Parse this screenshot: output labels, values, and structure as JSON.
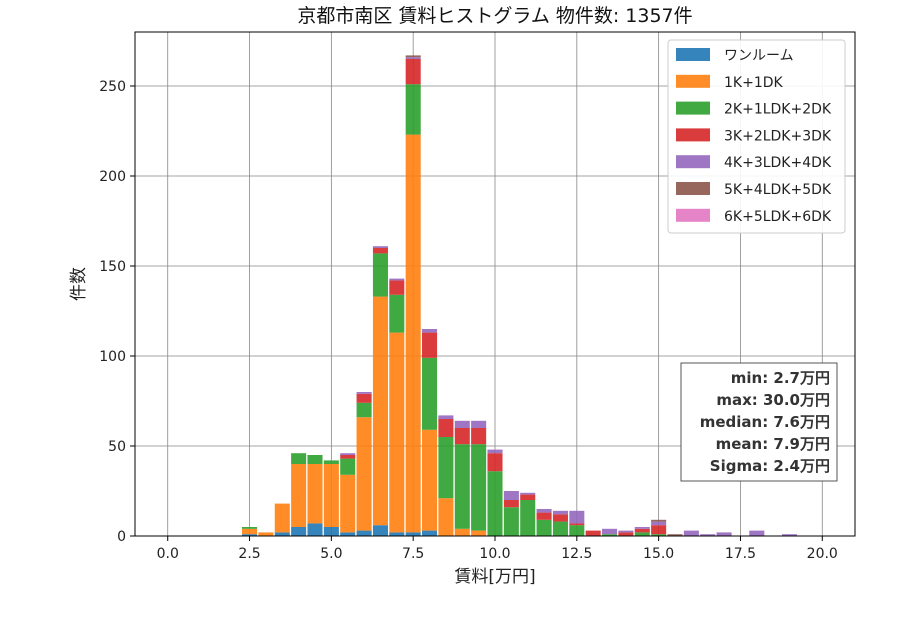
{
  "chart_data": {
    "type": "bar",
    "stacked": true,
    "title": "京都市南区 賃料ヒストグラム 物件数: 1357件",
    "xlabel": "賃料[万円]",
    "ylabel": "件数",
    "xlim": [
      -1.0,
      21.0
    ],
    "ylim": [
      0,
      280
    ],
    "xticks": [
      0.0,
      2.5,
      5.0,
      7.5,
      10.0,
      12.5,
      15.0,
      17.5,
      20.0
    ],
    "xtick_labels": [
      "0.0",
      "2.5",
      "5.0",
      "7.5",
      "10.0",
      "12.5",
      "15.0",
      "17.5",
      "20.0"
    ],
    "yticks": [
      0,
      50,
      100,
      150,
      200,
      250
    ],
    "ytick_labels": [
      "0",
      "50",
      "100",
      "150",
      "200",
      "250"
    ],
    "grid": true,
    "legend_position": "top-right",
    "bin_width": 0.5,
    "x": [
      2.5,
      3.0,
      3.5,
      4.0,
      4.5,
      5.0,
      5.5,
      6.0,
      6.5,
      7.0,
      7.5,
      8.0,
      8.5,
      9.0,
      9.5,
      10.0,
      10.5,
      11.0,
      11.5,
      12.0,
      12.5,
      13.0,
      13.5,
      14.0,
      14.5,
      15.0,
      15.5,
      16.0,
      16.5,
      17.0,
      17.5,
      18.0,
      18.5,
      19.0
    ],
    "series": [
      {
        "name": "ワンルーム",
        "color": "#1f77b4",
        "values": [
          1,
          0,
          2,
          5,
          7,
          5,
          2,
          3,
          6,
          2,
          2,
          3,
          0,
          0,
          0,
          0,
          0,
          0,
          0,
          0,
          0,
          0,
          0,
          0,
          0,
          0,
          0,
          0,
          0,
          0,
          0,
          0,
          0,
          0
        ]
      },
      {
        "name": "1K+1DK",
        "color": "#ff7f0e",
        "values": [
          3,
          2,
          16,
          35,
          33,
          35,
          32,
          63,
          127,
          111,
          221,
          56,
          21,
          4,
          3,
          0,
          0,
          0,
          0,
          0,
          0,
          0,
          0,
          0,
          0,
          0,
          0,
          0,
          0,
          0,
          0,
          0,
          0,
          0
        ]
      },
      {
        "name": "2K+1LDK+2DK",
        "color": "#2ca02c",
        "values": [
          1,
          0,
          0,
          6,
          5,
          2,
          9,
          8,
          24,
          21,
          28,
          40,
          34,
          47,
          48,
          36,
          16,
          20,
          9,
          8,
          6,
          0,
          1,
          0,
          2,
          1,
          0,
          0,
          0,
          0,
          0,
          0,
          0,
          0
        ]
      },
      {
        "name": "3K+2LDK+3DK",
        "color": "#d62728",
        "values": [
          0,
          0,
          0,
          0,
          0,
          0,
          2,
          5,
          3,
          8,
          14,
          14,
          10,
          9,
          9,
          10,
          4,
          3,
          4,
          4,
          1,
          3,
          0,
          2,
          2,
          5,
          0,
          0,
          0,
          0,
          0,
          0,
          0,
          0
        ]
      },
      {
        "name": "4K+3LDK+4DK",
        "color": "#9467bd",
        "values": [
          0,
          0,
          0,
          0,
          0,
          0,
          1,
          1,
          1,
          1,
          1,
          2,
          2,
          4,
          4,
          2,
          5,
          1,
          2,
          2,
          7,
          0,
          3,
          1,
          1,
          2,
          0,
          3,
          1,
          2,
          0,
          3,
          0,
          1
        ]
      },
      {
        "name": "5K+4LDK+5DK",
        "color": "#8c564b",
        "values": [
          0,
          0,
          0,
          0,
          0,
          0,
          0,
          0,
          0,
          0,
          1,
          0,
          0,
          0,
          0,
          0,
          0,
          0,
          0,
          0,
          0,
          0,
          0,
          0,
          0,
          1,
          1,
          0,
          0,
          0,
          0,
          0,
          0,
          0
        ]
      },
      {
        "name": "6K+5LDK+6DK",
        "color": "#e377c2",
        "values": [
          0,
          0,
          0,
          0,
          0,
          0,
          0,
          0,
          0,
          0,
          0,
          0,
          0,
          0,
          0,
          0,
          0,
          0,
          0,
          0,
          0,
          0,
          0,
          0,
          0,
          0,
          0,
          0,
          0,
          0,
          0,
          0,
          0,
          0
        ]
      }
    ],
    "stats": [
      "min: 2.7万円",
      "max: 30.0万円",
      "median: 7.6万円",
      "mean: 7.9万円",
      "Sigma: 2.4万円"
    ]
  }
}
